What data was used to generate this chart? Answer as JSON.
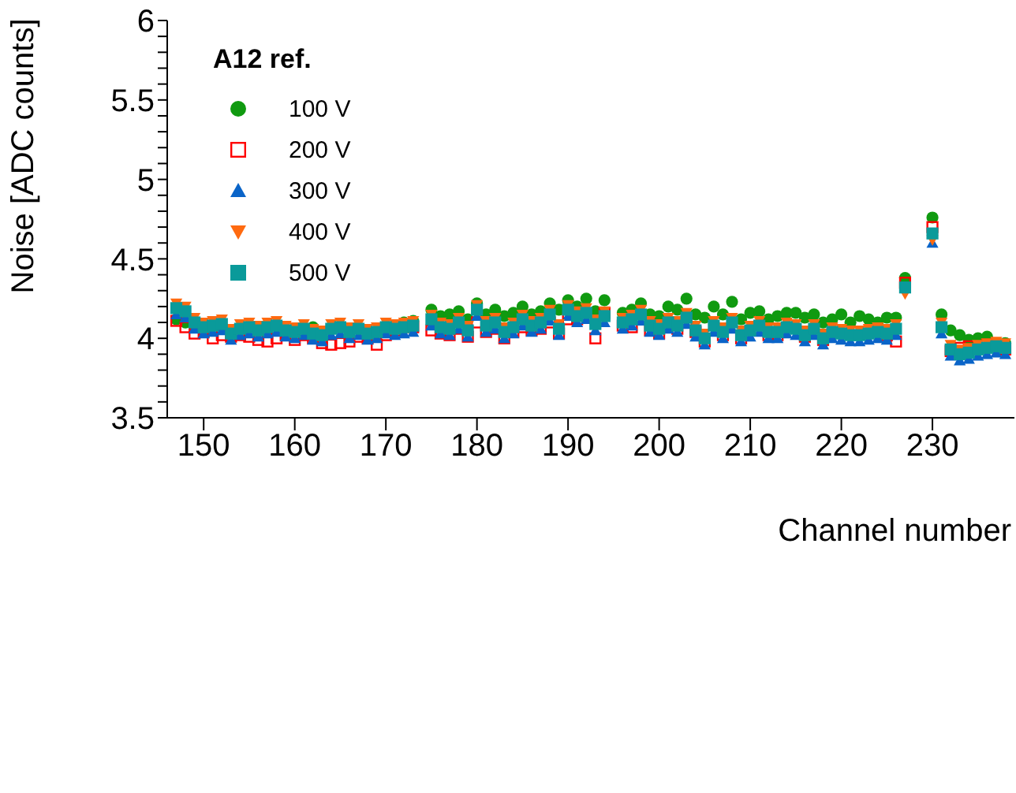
{
  "chart_data": {
    "type": "scatter",
    "xlabel": "Channel number",
    "ylabel": "Noise [ADC counts]",
    "legend_title": "A12 ref.",
    "legend": "top left",
    "grid": false,
    "xlim": [
      146,
      239
    ],
    "xticks": [
      150,
      160,
      170,
      180,
      190,
      200,
      210,
      220,
      230
    ],
    "ylim": [
      3.5,
      6
    ],
    "yticks": [
      3.5,
      {
        "value": 3.6,
        "label": null
      },
      {
        "value": 3.7,
        "label": null
      },
      {
        "value": 3.8,
        "label": null
      },
      {
        "value": 3.9,
        "label": null
      },
      4,
      {
        "value": 4.1,
        "label": null
      },
      {
        "value": 4.2,
        "label": null
      },
      {
        "value": 4.3,
        "label": null
      },
      {
        "value": 4.4,
        "label": null
      },
      4.5,
      {
        "value": 4.6,
        "label": null
      },
      {
        "value": 4.7,
        "label": null
      },
      {
        "value": 4.8,
        "label": null
      },
      {
        "value": 4.9,
        "label": null
      },
      5,
      {
        "value": 5.1,
        "label": null
      },
      {
        "value": 5.2,
        "label": null
      },
      {
        "value": 5.3,
        "label": null
      },
      {
        "value": 5.4,
        "label": null
      },
      5.5,
      {
        "value": 5.6,
        "label": null
      },
      {
        "value": 5.7,
        "label": null
      },
      {
        "value": 5.8,
        "label": null
      },
      {
        "value": 5.9,
        "label": null
      },
      6
    ],
    "x": [
      147,
      148,
      149,
      150,
      151,
      152,
      153,
      154,
      155,
      156,
      157,
      158,
      159,
      160,
      161,
      162,
      163,
      164,
      165,
      166,
      167,
      168,
      169,
      170,
      171,
      172,
      173,
      175,
      176,
      177,
      178,
      179,
      180,
      181,
      182,
      183,
      184,
      185,
      186,
      187,
      188,
      189,
      190,
      191,
      192,
      193,
      194,
      196,
      197,
      198,
      199,
      200,
      201,
      202,
      203,
      204,
      205,
      206,
      207,
      208,
      209,
      210,
      211,
      212,
      213,
      214,
      215,
      216,
      217,
      218,
      219,
      220,
      221,
      222,
      223,
      224,
      225,
      226,
      227,
      230,
      231,
      232,
      233,
      234,
      235,
      236,
      237,
      238
    ],
    "series": [
      {
        "name": "100 V",
        "color": "#109a10",
        "marker": "circle",
        "values": [
          4.12,
          4.1,
          null,
          null,
          null,
          null,
          null,
          null,
          null,
          null,
          null,
          null,
          null,
          null,
          null,
          4.07,
          null,
          null,
          null,
          null,
          null,
          null,
          null,
          null,
          null,
          4.1,
          4.11,
          4.18,
          4.14,
          4.15,
          4.17,
          4.12,
          4.22,
          4.15,
          4.18,
          4.14,
          4.16,
          4.2,
          4.15,
          4.17,
          4.22,
          4.18,
          4.24,
          4.2,
          4.25,
          4.17,
          4.24,
          4.16,
          4.18,
          4.22,
          4.15,
          4.14,
          4.2,
          4.18,
          4.25,
          4.15,
          4.13,
          4.2,
          4.15,
          4.23,
          4.12,
          4.16,
          4.17,
          4.12,
          4.14,
          4.16,
          4.16,
          4.13,
          4.15,
          4.1,
          4.12,
          4.15,
          4.1,
          4.14,
          4.12,
          4.1,
          4.13,
          4.13,
          4.38,
          4.76,
          4.15,
          4.05,
          4.02,
          3.99,
          4.0,
          4.01,
          null,
          3.97
        ]
      },
      {
        "name": "200 V",
        "color": "#ff0000",
        "marker": "square-open",
        "values": [
          4.11,
          4.07,
          4.03,
          4.04,
          4.0,
          4.02,
          4.01,
          4.02,
          4.01,
          3.99,
          3.98,
          4.0,
          4.02,
          3.99,
          4.02,
          4.0,
          3.97,
          3.96,
          3.97,
          3.98,
          4.01,
          4.0,
          3.96,
          4.02,
          4.05,
          null,
          4.07,
          4.05,
          4.03,
          4.02,
          4.06,
          4.01,
          4.1,
          4.04,
          4.06,
          4.0,
          4.04,
          4.07,
          4.05,
          4.06,
          4.1,
          4.03,
          4.12,
          4.12,
          null,
          4.0,
          4.16,
          4.08,
          4.07,
          null,
          4.05,
          4.03,
          null,
          4.06,
          4.11,
          4.04,
          3.98,
          null,
          4.02,
          null,
          4.0,
          null,
          null,
          4.02,
          4.02,
          null,
          null,
          4.01,
          null,
          3.99,
          null,
          null,
          null,
          null,
          null,
          null,
          4.02,
          3.98,
          4.35,
          4.7,
          null,
          3.92,
          3.94,
          3.95,
          null,
          3.96,
          null,
          3.93
        ]
      },
      {
        "name": "300 V",
        "color": "#0a64c8",
        "marker": "triangle",
        "values": [
          4.15,
          4.13,
          4.06,
          4.03,
          4.04,
          4.05,
          3.99,
          4.02,
          4.03,
          4.01,
          4.03,
          4.04,
          4.01,
          4.0,
          4.02,
          3.99,
          3.98,
          4.02,
          4.03,
          4.0,
          4.02,
          3.99,
          4.0,
          4.03,
          4.02,
          4.03,
          4.04,
          4.08,
          4.03,
          4.02,
          4.06,
          4.01,
          4.14,
          4.04,
          4.06,
          4.0,
          4.03,
          4.08,
          4.04,
          4.06,
          4.11,
          4.02,
          4.14,
          4.1,
          4.12,
          4.05,
          4.1,
          4.06,
          4.08,
          4.11,
          4.04,
          4.02,
          4.06,
          4.04,
          4.09,
          4.01,
          3.96,
          4.04,
          4.0,
          4.06,
          3.98,
          4.01,
          4.04,
          4.0,
          4.0,
          4.03,
          4.02,
          3.98,
          4.02,
          3.96,
          4.0,
          3.99,
          3.98,
          3.98,
          3.99,
          4.0,
          3.99,
          4.02,
          null,
          4.6,
          4.03,
          3.89,
          3.86,
          3.87,
          3.89,
          3.9,
          3.91,
          3.9
        ]
      },
      {
        "name": "400 V",
        "color": "#ff6a10",
        "marker": "triangle-down",
        "values": [
          4.22,
          4.2,
          4.13,
          4.1,
          4.11,
          4.12,
          4.06,
          4.09,
          4.1,
          4.08,
          4.1,
          4.11,
          4.08,
          4.07,
          4.09,
          4.06,
          4.05,
          4.09,
          4.1,
          4.07,
          4.09,
          4.06,
          4.07,
          4.1,
          4.09,
          4.1,
          4.11,
          4.15,
          4.1,
          4.09,
          4.13,
          4.08,
          4.21,
          4.11,
          4.13,
          4.07,
          4.1,
          4.15,
          4.11,
          4.13,
          4.18,
          4.09,
          4.21,
          4.17,
          4.19,
          4.12,
          4.17,
          4.13,
          4.15,
          4.18,
          4.11,
          4.09,
          4.13,
          4.11,
          4.16,
          4.08,
          4.03,
          4.11,
          4.07,
          4.13,
          4.05,
          4.08,
          4.11,
          4.07,
          4.07,
          4.1,
          4.09,
          4.05,
          4.09,
          4.03,
          4.07,
          4.06,
          4.05,
          4.05,
          4.06,
          4.07,
          4.06,
          4.09,
          4.28,
          4.62,
          4.1,
          3.96,
          3.93,
          3.94,
          3.96,
          3.97,
          3.98,
          3.97
        ]
      },
      {
        "name": "500 V",
        "color": "#0a9a9a",
        "marker": "square",
        "values": [
          4.19,
          4.17,
          4.1,
          4.07,
          4.08,
          4.09,
          4.03,
          4.06,
          4.07,
          4.05,
          4.07,
          4.08,
          4.05,
          4.04,
          4.06,
          4.03,
          4.02,
          4.06,
          4.07,
          4.04,
          4.06,
          4.03,
          4.04,
          4.07,
          4.06,
          4.07,
          4.08,
          4.12,
          4.07,
          4.06,
          4.1,
          4.05,
          4.18,
          4.08,
          4.1,
          4.04,
          4.07,
          4.12,
          4.08,
          4.1,
          4.15,
          4.06,
          4.18,
          4.14,
          4.16,
          4.09,
          4.14,
          4.1,
          4.12,
          4.15,
          4.08,
          4.06,
          4.1,
          4.08,
          4.13,
          4.05,
          4.0,
          4.08,
          4.04,
          4.1,
          4.02,
          4.05,
          4.08,
          4.04,
          4.04,
          4.07,
          4.06,
          4.02,
          4.06,
          4.0,
          4.04,
          4.03,
          4.02,
          4.02,
          4.03,
          4.04,
          4.03,
          4.06,
          4.32,
          4.66,
          4.07,
          3.93,
          3.9,
          3.91,
          3.93,
          3.94,
          3.95,
          3.94
        ]
      }
    ]
  }
}
